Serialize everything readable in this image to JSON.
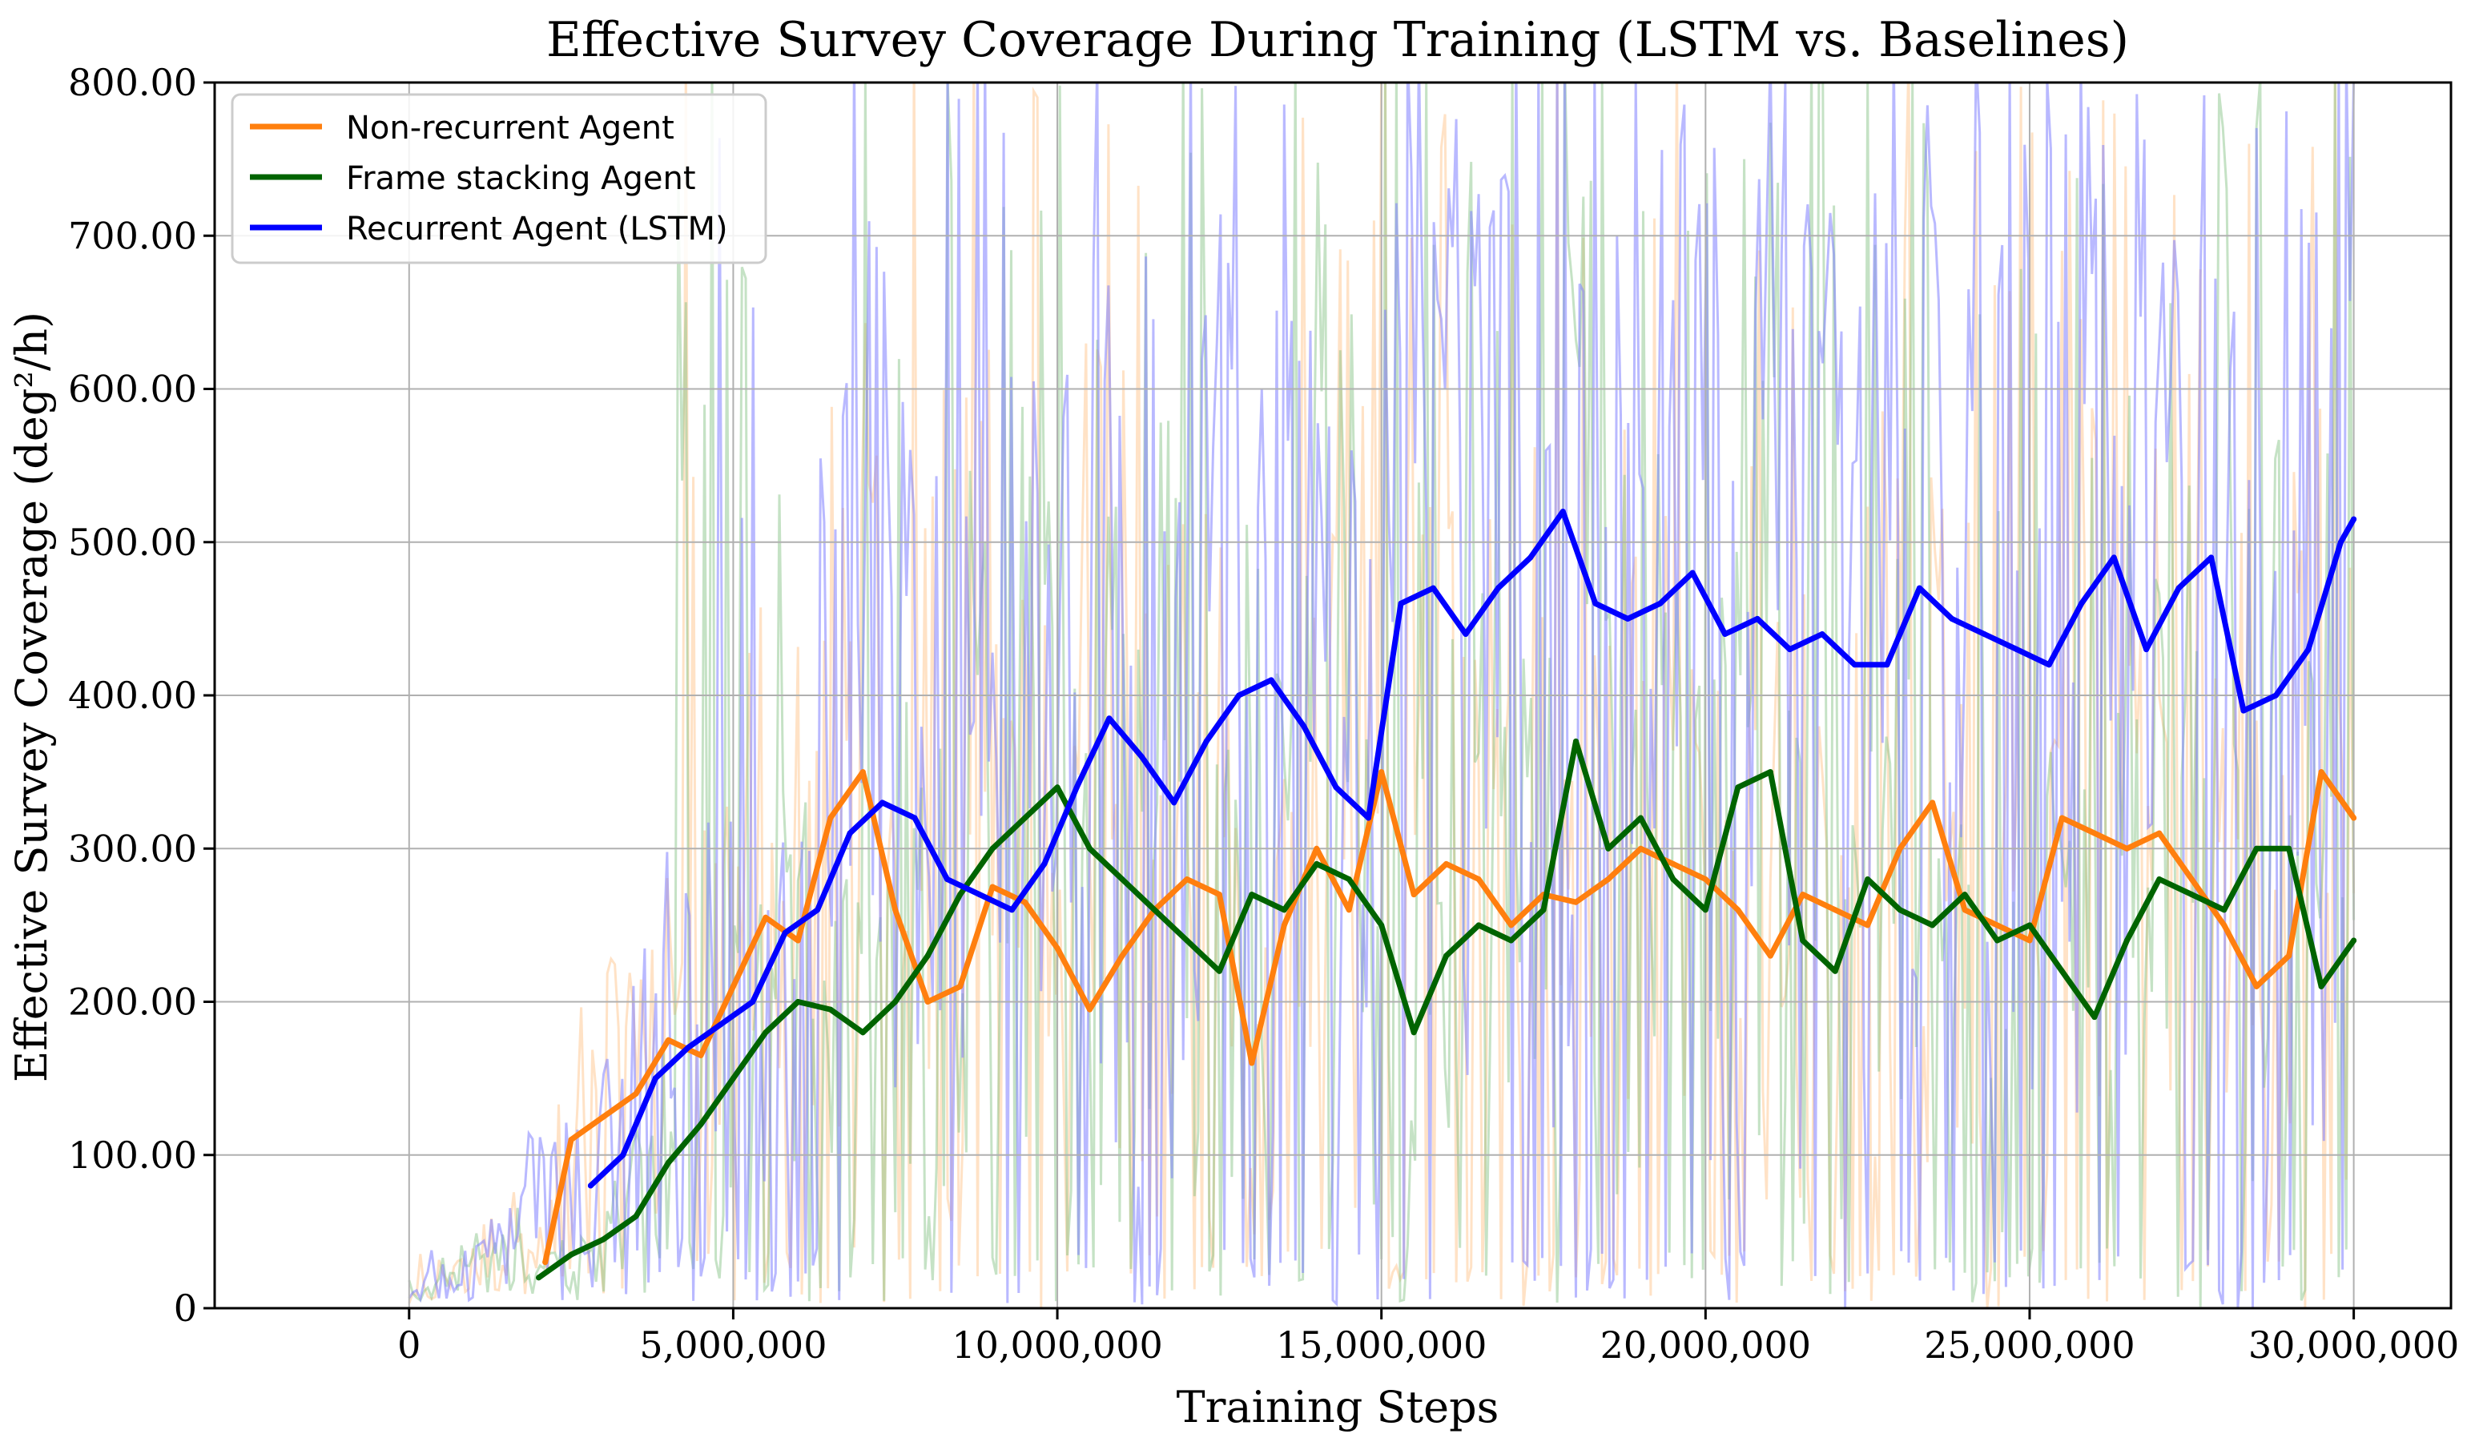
{
  "chart_data": {
    "type": "line",
    "title": "Effective Survey Coverage During Training (LSTM vs. Baselines)",
    "xlabel": "Training Steps",
    "ylabel": "Effective Survey Coverage (deg²/h)",
    "xlim": [
      -3000000,
      31500000
    ],
    "ylim": [
      0,
      800
    ],
    "grid": true,
    "legend_position": "top-left",
    "x_ticks": [
      0,
      5000000,
      10000000,
      15000000,
      20000000,
      25000000,
      30000000
    ],
    "x_tick_labels": [
      "0",
      "5,000,000",
      "10,000,000",
      "15,000,000",
      "20,000,000",
      "25,000,000",
      "30,000,000"
    ],
    "y_ticks": [
      0,
      100,
      200,
      300,
      400,
      500,
      600,
      700,
      800
    ],
    "y_tick_labels": [
      "0",
      "100.00",
      "200.00",
      "300.00",
      "400.00",
      "500.00",
      "600.00",
      "700.00",
      "800.00"
    ],
    "series": [
      {
        "name": "Non-recurrent Agent",
        "color": "#ff7f0e",
        "x": [
          2100000,
          2500000,
          3000000,
          3500000,
          4000000,
          4500000,
          5000000,
          5500000,
          6000000,
          6500000,
          7000000,
          7500000,
          8000000,
          8500000,
          9000000,
          9500000,
          10000000,
          10500000,
          11000000,
          11500000,
          12000000,
          12500000,
          13000000,
          13500000,
          14000000,
          14500000,
          15000000,
          15500000,
          16000000,
          16500000,
          17000000,
          17500000,
          18000000,
          18500000,
          19000000,
          19500000,
          20000000,
          20500000,
          21000000,
          21500000,
          22000000,
          22500000,
          23000000,
          23500000,
          24000000,
          24500000,
          25000000,
          25500000,
          26000000,
          26500000,
          27000000,
          27500000,
          28000000,
          28500000,
          29000000,
          29500000,
          30000000
        ],
        "values": [
          30,
          110,
          125,
          140,
          175,
          165,
          210,
          255,
          240,
          320,
          350,
          260,
          200,
          210,
          275,
          265,
          235,
          195,
          230,
          260,
          280,
          270,
          160,
          250,
          300,
          260,
          350,
          270,
          290,
          280,
          250,
          270,
          265,
          280,
          300,
          290,
          280,
          260,
          230,
          270,
          260,
          250,
          300,
          330,
          260,
          250,
          240,
          320,
          310,
          300,
          310,
          280,
          250,
          210,
          230,
          350,
          320
        ]
      },
      {
        "name": "Frame stacking Agent",
        "color": "#006400",
        "x": [
          2000000,
          2500000,
          3000000,
          3500000,
          4000000,
          4500000,
          5000000,
          5500000,
          6000000,
          6500000,
          7000000,
          7500000,
          8000000,
          8500000,
          9000000,
          9500000,
          10000000,
          10500000,
          11000000,
          11500000,
          12000000,
          12500000,
          13000000,
          13500000,
          14000000,
          14500000,
          15000000,
          15500000,
          16000000,
          16500000,
          17000000,
          17500000,
          18000000,
          18500000,
          19000000,
          19500000,
          20000000,
          20500000,
          21000000,
          21500000,
          22000000,
          22500000,
          23000000,
          23500000,
          24000000,
          24500000,
          25000000,
          25500000,
          26000000,
          26500000,
          27000000,
          27500000,
          28000000,
          28500000,
          29000000,
          29500000,
          30000000
        ],
        "values": [
          20,
          35,
          45,
          60,
          95,
          120,
          150,
          180,
          200,
          195,
          180,
          200,
          230,
          270,
          300,
          320,
          340,
          300,
          280,
          260,
          240,
          220,
          270,
          260,
          290,
          280,
          250,
          180,
          230,
          250,
          240,
          260,
          370,
          300,
          320,
          280,
          260,
          340,
          350,
          240,
          220,
          280,
          260,
          250,
          270,
          240,
          250,
          220,
          190,
          240,
          280,
          270,
          260,
          300,
          300,
          210,
          240
        ]
      },
      {
        "name": "Recurrent Agent (LSTM)",
        "color": "#0000ff",
        "x": [
          2800000,
          3300000,
          3800000,
          4300000,
          4800000,
          5300000,
          5800000,
          6300000,
          6800000,
          7300000,
          7800000,
          8300000,
          8800000,
          9300000,
          9800000,
          10300000,
          10800000,
          11300000,
          11800000,
          12300000,
          12800000,
          13300000,
          13800000,
          14300000,
          14800000,
          15300000,
          15800000,
          16300000,
          16800000,
          17300000,
          17800000,
          18300000,
          18800000,
          19300000,
          19800000,
          20300000,
          20800000,
          21300000,
          21800000,
          22300000,
          22800000,
          23300000,
          23800000,
          24300000,
          24800000,
          25300000,
          25800000,
          26300000,
          26800000,
          27300000,
          27800000,
          28300000,
          28800000,
          29300000,
          29800000,
          30000000
        ],
        "values": [
          80,
          100,
          150,
          170,
          185,
          200,
          245,
          260,
          310,
          330,
          320,
          280,
          270,
          260,
          290,
          340,
          385,
          360,
          330,
          370,
          400,
          410,
          380,
          340,
          320,
          460,
          470,
          440,
          470,
          490,
          520,
          460,
          450,
          460,
          480,
          440,
          450,
          430,
          440,
          420,
          420,
          470,
          450,
          440,
          430,
          420,
          460,
          490,
          430,
          470,
          490,
          390,
          400,
          430,
          500,
          515
        ]
      }
    ]
  }
}
